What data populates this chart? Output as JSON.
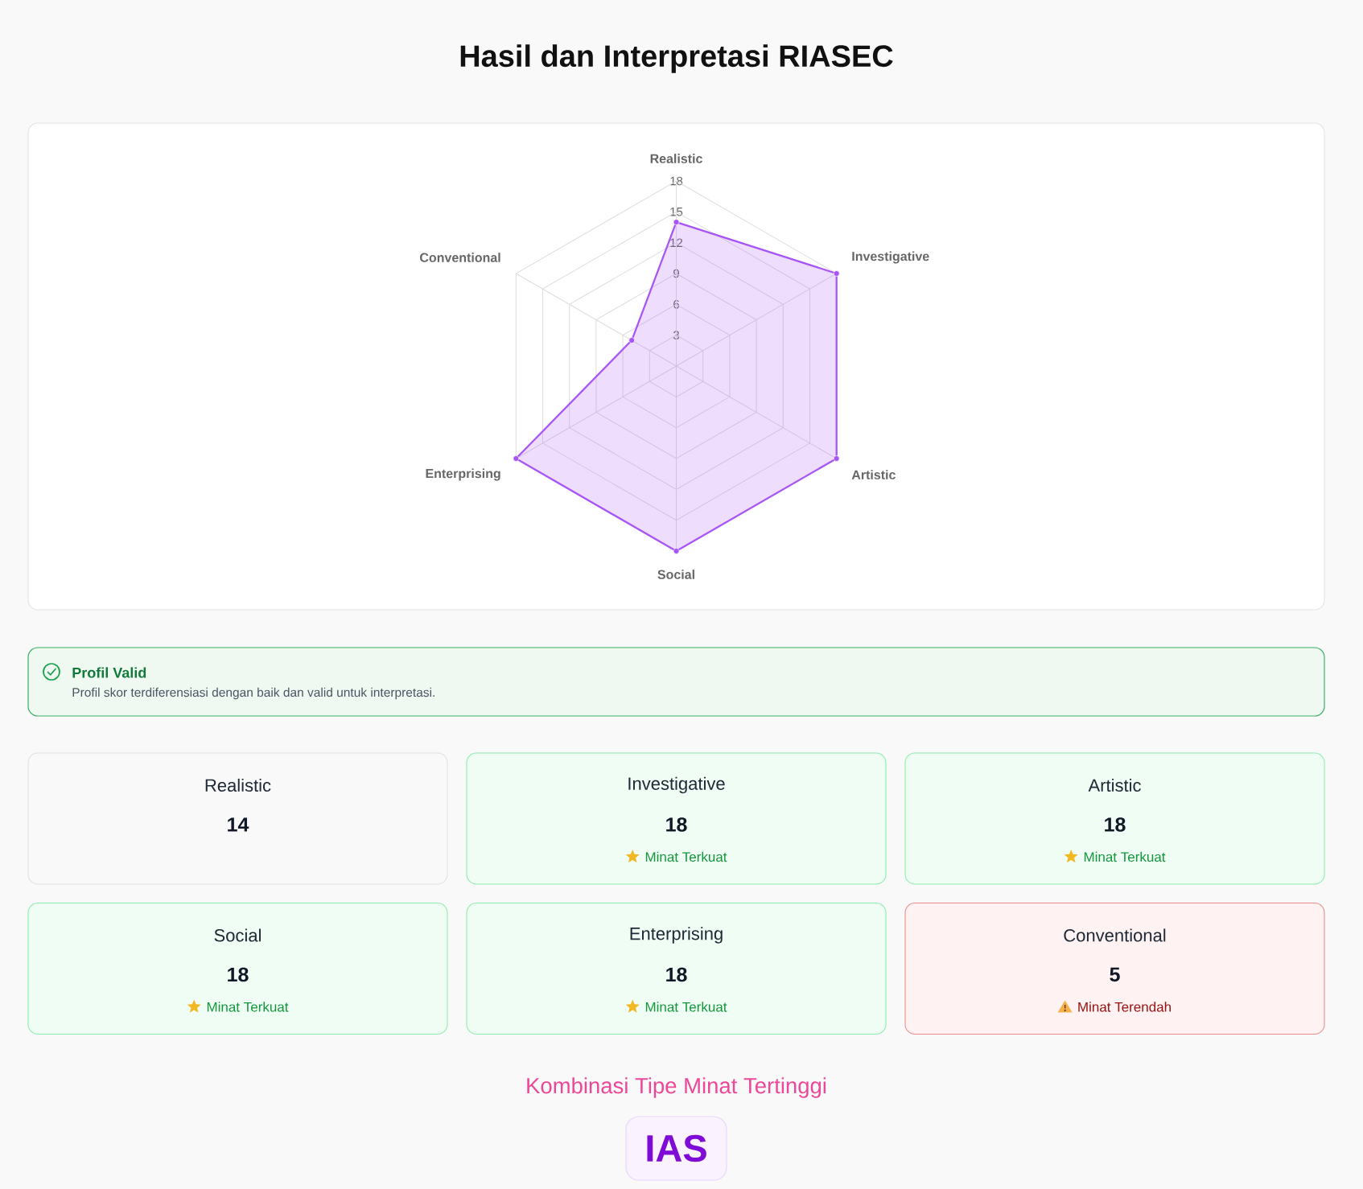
{
  "chart_data": [
    {
      "type": "radar",
      "title": "Hasil dan Interpretasi RIASEC",
      "categories": [
        "Realistic",
        "Investigative",
        "Artistic",
        "Social",
        "Enterprising",
        "Conventional"
      ],
      "series": [
        {
          "color": "#a855f7",
          "values": [
            14,
            18,
            18,
            18,
            18,
            5
          ]
        }
      ],
      "ylim": [
        0,
        18
      ],
      "yticks": [
        3,
        6,
        9,
        12,
        15,
        18
      ],
      "grid": true,
      "marker": "circle"
    },
    {
      "type": "other",
      "title": "Profil Valid",
      "subtitle": "Profil skor terdiferensiasi dengan baik dan valid untuk interpretasi.",
      "color": "#16a34a"
    },
    {
      "type": "other",
      "categories": [
        "Realistic",
        "Investigative",
        "Artistic",
        "Social",
        "Enterprising",
        "Conventional"
      ],
      "values": [
        14,
        18,
        18,
        18,
        18,
        5
      ],
      "colors": [
        "#f9f9f9",
        "#f0fdf4",
        "#f0fdf4",
        "#f0fdf4",
        "#f0fdf4",
        "#fef2f2"
      ],
      "data_labels": true,
      "annotations": [
        {
          "text": "Minat Terkuat",
          "x": "Investigative"
        },
        {
          "text": "Minat Terkuat",
          "x": "Artistic"
        },
        {
          "text": "Minat Terkuat",
          "x": "Social"
        },
        {
          "text": "Minat Terkuat",
          "x": "Enterprising"
        },
        {
          "text": "Minat Terendah",
          "x": "Conventional"
        }
      ]
    },
    {
      "type": "other",
      "title": "Kombinasi Tipe Minat Tertinggi",
      "annotations": [
        "IAS"
      ]
    }
  ]
}
